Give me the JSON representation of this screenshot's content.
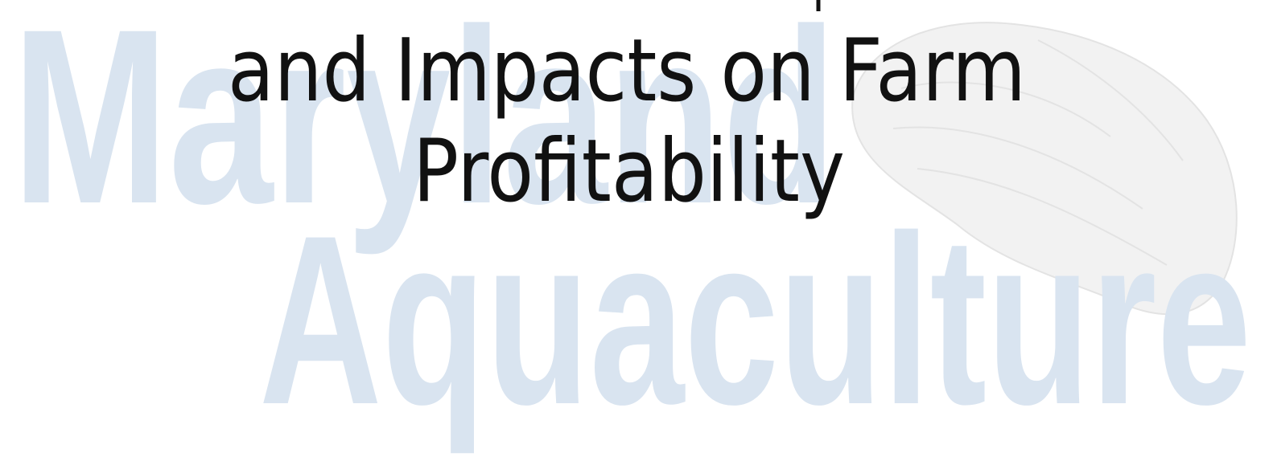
{
  "watermark": {
    "line1": "Maryland",
    "line2": "Aquaculture"
  },
  "title": {
    "lines": [
      "and Impacts on Farm",
      "Profitability"
    ]
  }
}
